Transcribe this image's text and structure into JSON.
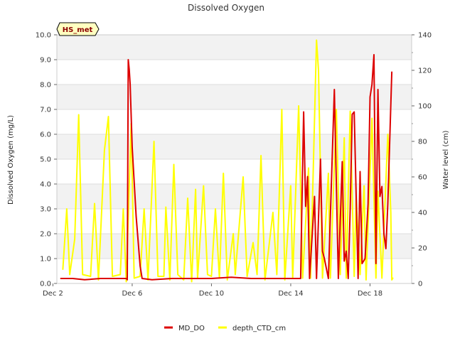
{
  "chart_data": {
    "type": "line",
    "title": "Dissolved Oxygen",
    "station_badge": "HS_met",
    "ylabel": "Dissolved Oxygen (mg/L)",
    "y2label": "Water level (cm)",
    "xlabel": "",
    "xlim": [
      2.2,
      20.1
    ],
    "ylim": [
      0,
      10
    ],
    "y2lim": [
      0,
      140
    ],
    "x_ticks": [
      {
        "value": 2,
        "label": "Dec 2"
      },
      {
        "value": 6,
        "label": "Dec 6"
      },
      {
        "value": 10,
        "label": "Dec 10"
      },
      {
        "value": 14,
        "label": "Dec 14"
      },
      {
        "value": 18,
        "label": "Dec 18"
      }
    ],
    "y_ticks": [
      "0.0",
      "1.0",
      "2.0",
      "3.0",
      "4.0",
      "5.0",
      "6.0",
      "7.0",
      "8.0",
      "9.0",
      "10.0"
    ],
    "y2_ticks": [
      "0",
      "20",
      "40",
      "60",
      "80",
      "100",
      "120",
      "140"
    ],
    "grid": "horizontal",
    "band_colors": [
      "#ffffff",
      "#f2f2f2"
    ],
    "legend_position": "bottom-center",
    "series": [
      {
        "name": "MD_DO",
        "axis": "left",
        "color": "#dd0000",
        "points": [
          [
            2.4,
            0.2
          ],
          [
            3.0,
            0.2
          ],
          [
            3.6,
            0.15
          ],
          [
            4.4,
            0.2
          ],
          [
            5.2,
            0.2
          ],
          [
            5.7,
            0.2
          ],
          [
            5.75,
            0.15
          ],
          [
            5.8,
            9.0
          ],
          [
            5.85,
            8.6
          ],
          [
            5.9,
            8.0
          ],
          [
            6.0,
            5.5
          ],
          [
            6.2,
            2.7
          ],
          [
            6.4,
            0.7
          ],
          [
            6.5,
            0.2
          ],
          [
            7.0,
            0.15
          ],
          [
            8.0,
            0.2
          ],
          [
            9.0,
            0.2
          ],
          [
            10.0,
            0.2
          ],
          [
            11.0,
            0.25
          ],
          [
            12.0,
            0.2
          ],
          [
            13.0,
            0.2
          ],
          [
            14.5,
            0.2
          ],
          [
            14.55,
            2.6
          ],
          [
            14.65,
            6.9
          ],
          [
            14.75,
            3.1
          ],
          [
            14.85,
            4.3
          ],
          [
            14.95,
            0.2
          ],
          [
            15.2,
            3.5
          ],
          [
            15.3,
            0.2
          ],
          [
            15.5,
            5.0
          ],
          [
            15.6,
            1.3
          ],
          [
            15.7,
            1.0
          ],
          [
            15.9,
            0.2
          ],
          [
            16.2,
            7.8
          ],
          [
            16.4,
            0.2
          ],
          [
            16.6,
            4.9
          ],
          [
            16.7,
            0.9
          ],
          [
            16.8,
            1.3
          ],
          [
            16.9,
            0.2
          ],
          [
            17.0,
            3.0
          ],
          [
            17.1,
            6.8
          ],
          [
            17.2,
            6.9
          ],
          [
            17.4,
            0.2
          ],
          [
            17.5,
            4.5
          ],
          [
            17.6,
            0.8
          ],
          [
            17.75,
            1.0
          ],
          [
            17.9,
            3.2
          ],
          [
            18.0,
            7.5
          ],
          [
            18.1,
            8.0
          ],
          [
            18.2,
            9.2
          ],
          [
            18.3,
            0.8
          ],
          [
            18.4,
            7.8
          ],
          [
            18.5,
            3.5
          ],
          [
            18.6,
            3.9
          ],
          [
            18.7,
            2.0
          ],
          [
            18.8,
            1.4
          ],
          [
            18.9,
            3.2
          ],
          [
            19.1,
            8.5
          ]
        ]
      },
      {
        "name": "depth_CTD_cm",
        "axis": "right",
        "color": "#ffff00",
        "points": [
          [
            2.5,
            8
          ],
          [
            2.7,
            42
          ],
          [
            2.85,
            5
          ],
          [
            3.1,
            25
          ],
          [
            3.3,
            95
          ],
          [
            3.5,
            5
          ],
          [
            3.9,
            4
          ],
          [
            4.1,
            45
          ],
          [
            4.3,
            2
          ],
          [
            4.6,
            75
          ],
          [
            4.8,
            94
          ],
          [
            5.0,
            4
          ],
          [
            5.4,
            5
          ],
          [
            5.55,
            42
          ],
          [
            5.7,
            1
          ],
          [
            5.95,
            90
          ],
          [
            6.1,
            3
          ],
          [
            6.4,
            4
          ],
          [
            6.6,
            42
          ],
          [
            6.8,
            2
          ],
          [
            7.1,
            80
          ],
          [
            7.3,
            4
          ],
          [
            7.6,
            4
          ],
          [
            7.7,
            43
          ],
          [
            7.9,
            2
          ],
          [
            8.1,
            67
          ],
          [
            8.3,
            5
          ],
          [
            8.6,
            2
          ],
          [
            8.8,
            48
          ],
          [
            9.0,
            1
          ],
          [
            9.2,
            53
          ],
          [
            9.3,
            3
          ],
          [
            9.6,
            55
          ],
          [
            9.8,
            5
          ],
          [
            10.0,
            4
          ],
          [
            10.2,
            42
          ],
          [
            10.4,
            3
          ],
          [
            10.6,
            62
          ],
          [
            10.8,
            2
          ],
          [
            11.1,
            28
          ],
          [
            11.2,
            5
          ],
          [
            11.6,
            60
          ],
          [
            11.8,
            4
          ],
          [
            12.1,
            23
          ],
          [
            12.3,
            5
          ],
          [
            12.5,
            72
          ],
          [
            12.7,
            2
          ],
          [
            13.1,
            40
          ],
          [
            13.3,
            5
          ],
          [
            13.55,
            98
          ],
          [
            13.7,
            2
          ],
          [
            14.0,
            55
          ],
          [
            14.1,
            3
          ],
          [
            14.4,
            100
          ],
          [
            14.6,
            3
          ],
          [
            14.9,
            65
          ],
          [
            15.0,
            3
          ],
          [
            15.3,
            137
          ],
          [
            15.4,
            120
          ],
          [
            15.6,
            3
          ],
          [
            15.9,
            62
          ],
          [
            16.0,
            3
          ],
          [
            16.3,
            98
          ],
          [
            16.5,
            5
          ],
          [
            16.7,
            82
          ],
          [
            16.8,
            3
          ],
          [
            17.0,
            97
          ],
          [
            17.2,
            4
          ],
          [
            17.3,
            48
          ],
          [
            17.5,
            5
          ],
          [
            17.7,
            55
          ],
          [
            17.8,
            2
          ],
          [
            18.1,
            93
          ],
          [
            18.3,
            3
          ],
          [
            18.4,
            52
          ],
          [
            18.6,
            3
          ],
          [
            18.9,
            84
          ],
          [
            19.05,
            40
          ],
          [
            19.1,
            2
          ],
          [
            19.15,
            3
          ]
        ]
      }
    ]
  }
}
